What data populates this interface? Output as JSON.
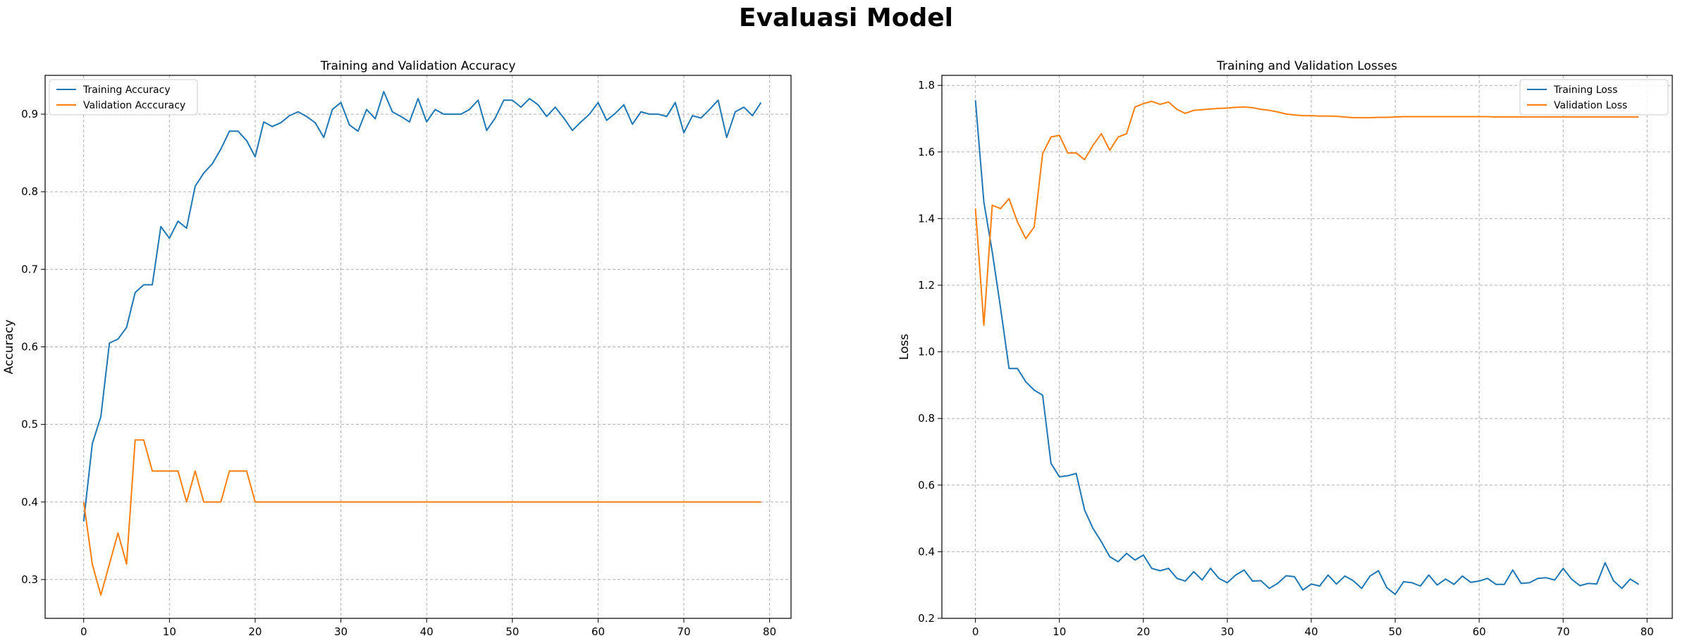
{
  "suptitle": "Evaluasi Model",
  "chart_data": [
    {
      "type": "line",
      "title": "Training and Validation Accuracy",
      "xlabel": "",
      "ylabel": "Accuracy",
      "xlim": [
        -4.5,
        82.5
      ],
      "ylim": [
        0.25,
        0.95
      ],
      "xticks": [
        0,
        10,
        20,
        30,
        40,
        50,
        60,
        70,
        80
      ],
      "yticks": [
        0.3,
        0.4,
        0.5,
        0.6,
        0.7,
        0.8,
        0.9
      ],
      "ytick_labels": [
        "0.3",
        "0.4",
        "0.5",
        "0.6",
        "0.7",
        "0.8",
        "0.9"
      ],
      "grid": true,
      "legend_position": "upper-left",
      "series": [
        {
          "name": "Training Accuracy",
          "color": "#1f77b4",
          "values": [
            0.375,
            0.475,
            0.51,
            0.605,
            0.61,
            0.625,
            0.67,
            0.68,
            0.68,
            0.755,
            0.74,
            0.762,
            0.753,
            0.807,
            0.824,
            0.836,
            0.855,
            0.878,
            0.878,
            0.866,
            0.845,
            0.89,
            0.884,
            0.889,
            0.898,
            0.903,
            0.897,
            0.889,
            0.87,
            0.906,
            0.915,
            0.886,
            0.878,
            0.906,
            0.894,
            0.929,
            0.903,
            0.897,
            0.89,
            0.92,
            0.89,
            0.906,
            0.9,
            0.9,
            0.9,
            0.906,
            0.918,
            0.879,
            0.895,
            0.918,
            0.918,
            0.909,
            0.92,
            0.912,
            0.897,
            0.909,
            0.895,
            0.879,
            0.89,
            0.9,
            0.915,
            0.892,
            0.901,
            0.912,
            0.887,
            0.903,
            0.9,
            0.9,
            0.897,
            0.915,
            0.876,
            0.898,
            0.895,
            0.906,
            0.918,
            0.87,
            0.903,
            0.909,
            0.898,
            0.915
          ]
        },
        {
          "name": "Validation Acccuracy",
          "color": "#ff7f0e",
          "values": [
            0.4,
            0.32,
            0.28,
            0.32,
            0.36,
            0.32,
            0.48,
            0.48,
            0.44,
            0.44,
            0.44,
            0.44,
            0.4,
            0.44,
            0.4,
            0.4,
            0.4,
            0.44,
            0.44,
            0.44,
            0.4,
            0.4,
            0.4,
            0.4,
            0.4,
            0.4,
            0.4,
            0.4,
            0.4,
            0.4,
            0.4,
            0.4,
            0.4,
            0.4,
            0.4,
            0.4,
            0.4,
            0.4,
            0.4,
            0.4,
            0.4,
            0.4,
            0.4,
            0.4,
            0.4,
            0.4,
            0.4,
            0.4,
            0.4,
            0.4,
            0.4,
            0.4,
            0.4,
            0.4,
            0.4,
            0.4,
            0.4,
            0.4,
            0.4,
            0.4,
            0.4,
            0.4,
            0.4,
            0.4,
            0.4,
            0.4,
            0.4,
            0.4,
            0.4,
            0.4,
            0.4,
            0.4,
            0.4,
            0.4,
            0.4,
            0.4,
            0.4,
            0.4,
            0.4,
            0.4
          ]
        }
      ]
    },
    {
      "type": "line",
      "title": "Training and Validation Losses",
      "xlabel": "",
      "ylabel": "Loss",
      "xlim": [
        -4,
        83
      ],
      "ylim": [
        0.2,
        1.83
      ],
      "xticks": [
        0,
        10,
        20,
        30,
        40,
        50,
        60,
        70,
        80
      ],
      "yticks": [
        0.2,
        0.4,
        0.6,
        0.8,
        1.0,
        1.2,
        1.4,
        1.6,
        1.8
      ],
      "ytick_labels": [
        "0.2",
        "0.4",
        "0.6",
        "0.8",
        "1.0",
        "1.2",
        "1.4",
        "1.6",
        "1.8"
      ],
      "grid": true,
      "legend_position": "upper-right",
      "series": [
        {
          "name": "Training Loss",
          "color": "#1f77b4",
          "values": [
            1.755,
            1.45,
            1.3,
            1.13,
            0.95,
            0.95,
            0.91,
            0.885,
            0.87,
            0.665,
            0.625,
            0.628,
            0.635,
            0.525,
            0.47,
            0.43,
            0.385,
            0.37,
            0.395,
            0.375,
            0.39,
            0.35,
            0.343,
            0.35,
            0.32,
            0.312,
            0.34,
            0.315,
            0.35,
            0.32,
            0.307,
            0.33,
            0.345,
            0.312,
            0.313,
            0.29,
            0.305,
            0.328,
            0.325,
            0.285,
            0.303,
            0.297,
            0.33,
            0.303,
            0.327,
            0.313,
            0.29,
            0.327,
            0.343,
            0.292,
            0.272,
            0.31,
            0.307,
            0.297,
            0.33,
            0.3,
            0.318,
            0.302,
            0.327,
            0.308,
            0.312,
            0.32,
            0.302,
            0.302,
            0.345,
            0.305,
            0.307,
            0.32,
            0.322,
            0.315,
            0.35,
            0.318,
            0.298,
            0.305,
            0.303,
            0.367,
            0.313,
            0.29,
            0.318,
            0.302
          ]
        },
        {
          "name": "Validation Loss",
          "color": "#ff7f0e",
          "values": [
            1.43,
            1.08,
            1.44,
            1.43,
            1.46,
            1.39,
            1.34,
            1.375,
            1.595,
            1.645,
            1.65,
            1.597,
            1.597,
            1.577,
            1.62,
            1.655,
            1.605,
            1.645,
            1.655,
            1.735,
            1.745,
            1.752,
            1.743,
            1.75,
            1.728,
            1.716,
            1.725,
            1.727,
            1.729,
            1.731,
            1.732,
            1.734,
            1.735,
            1.733,
            1.728,
            1.725,
            1.72,
            1.714,
            1.711,
            1.709,
            1.709,
            1.708,
            1.708,
            1.707,
            1.705,
            1.703,
            1.703,
            1.703,
            1.704,
            1.704,
            1.705,
            1.706,
            1.706,
            1.706,
            1.706,
            1.706,
            1.706,
            1.706,
            1.706,
            1.706,
            1.706,
            1.706,
            1.705,
            1.705,
            1.705,
            1.705,
            1.705,
            1.705,
            1.705,
            1.705,
            1.705,
            1.705,
            1.705,
            1.705,
            1.705,
            1.705,
            1.705,
            1.705,
            1.705,
            1.705
          ]
        }
      ]
    }
  ]
}
